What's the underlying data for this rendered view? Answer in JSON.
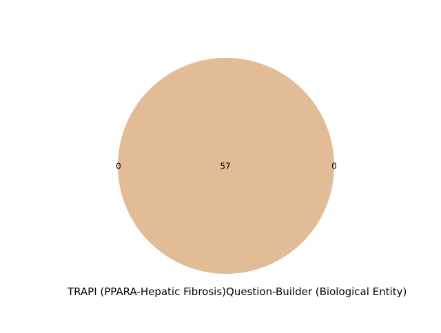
{
  "venn": {
    "sets": [
      {
        "name": "TRAPI (PPARA-Hepatic Fibrosis)",
        "only_count": "0"
      },
      {
        "name": "Question-Builder (Biological Entity)",
        "only_count": "0"
      }
    ],
    "intersection_count": "57",
    "colors": {
      "overlap_fill": "#e1bc96"
    }
  }
}
